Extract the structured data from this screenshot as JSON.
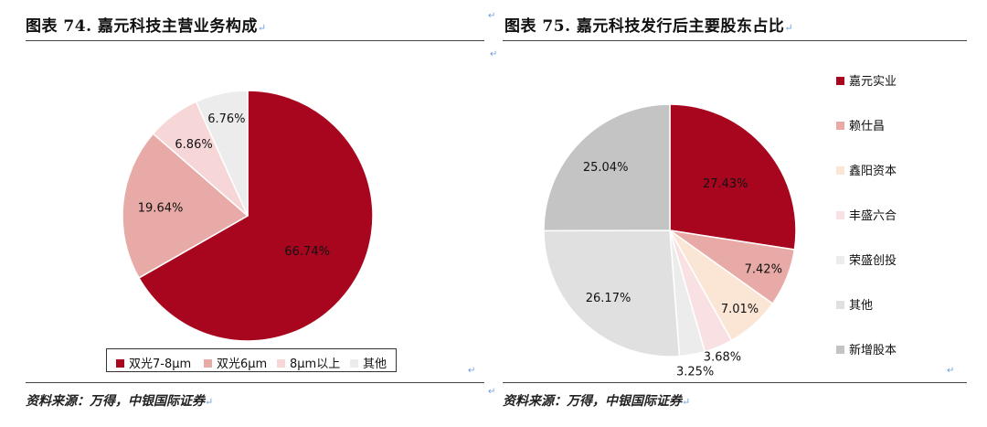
{
  "left": {
    "title": "图表 74. 嘉元科技主营业务构成",
    "source": "资料来源：万得，中银国际证券"
  },
  "right": {
    "title": "图表 75. 嘉元科技发行后主要股东占比",
    "source": "资料来源：万得，中银国际证券"
  },
  "colors": {
    "dark_red": "#a8061f",
    "pink": "#e8aaa6",
    "light_pink": "#f6d6d6",
    "peach": "#fbe6d6",
    "pale_pink": "#f9e1e3",
    "very_light_gray": "#ececec",
    "light_gray": "#e0e0e0",
    "gray": "#c4c4c4"
  },
  "chart_data": [
    {
      "type": "pie",
      "title": "图表 74. 嘉元科技主营业务构成",
      "categories": [
        "双光7-8μm",
        "双光6μm",
        "8μm以上",
        "其他"
      ],
      "values": [
        66.74,
        19.64,
        6.86,
        6.76
      ],
      "labels": [
        "66.74%",
        "19.64%",
        "6.86%",
        "6.76%"
      ],
      "colors": [
        "#a8061f",
        "#e8aaa6",
        "#f6d6d6",
        "#ececec"
      ],
      "legend_position": "bottom"
    },
    {
      "type": "pie",
      "title": "图表 75. 嘉元科技发行后主要股东占比",
      "categories": [
        "嘉元实业",
        "赖仕昌",
        "鑫阳资本",
        "丰盛六合",
        "荣盛创投",
        "其他",
        "新增股本"
      ],
      "values": [
        27.43,
        7.42,
        7.01,
        3.68,
        3.25,
        26.17,
        25.04
      ],
      "labels": [
        "27.43%",
        "7.42%",
        "7.01%",
        "3.68%",
        "3.25%",
        "26.17%",
        "25.04%"
      ],
      "colors": [
        "#a8061f",
        "#e8aaa6",
        "#fbe6d6",
        "#f9e1e3",
        "#ececec",
        "#e0e0e0",
        "#c4c4c4"
      ],
      "legend_position": "right"
    }
  ]
}
